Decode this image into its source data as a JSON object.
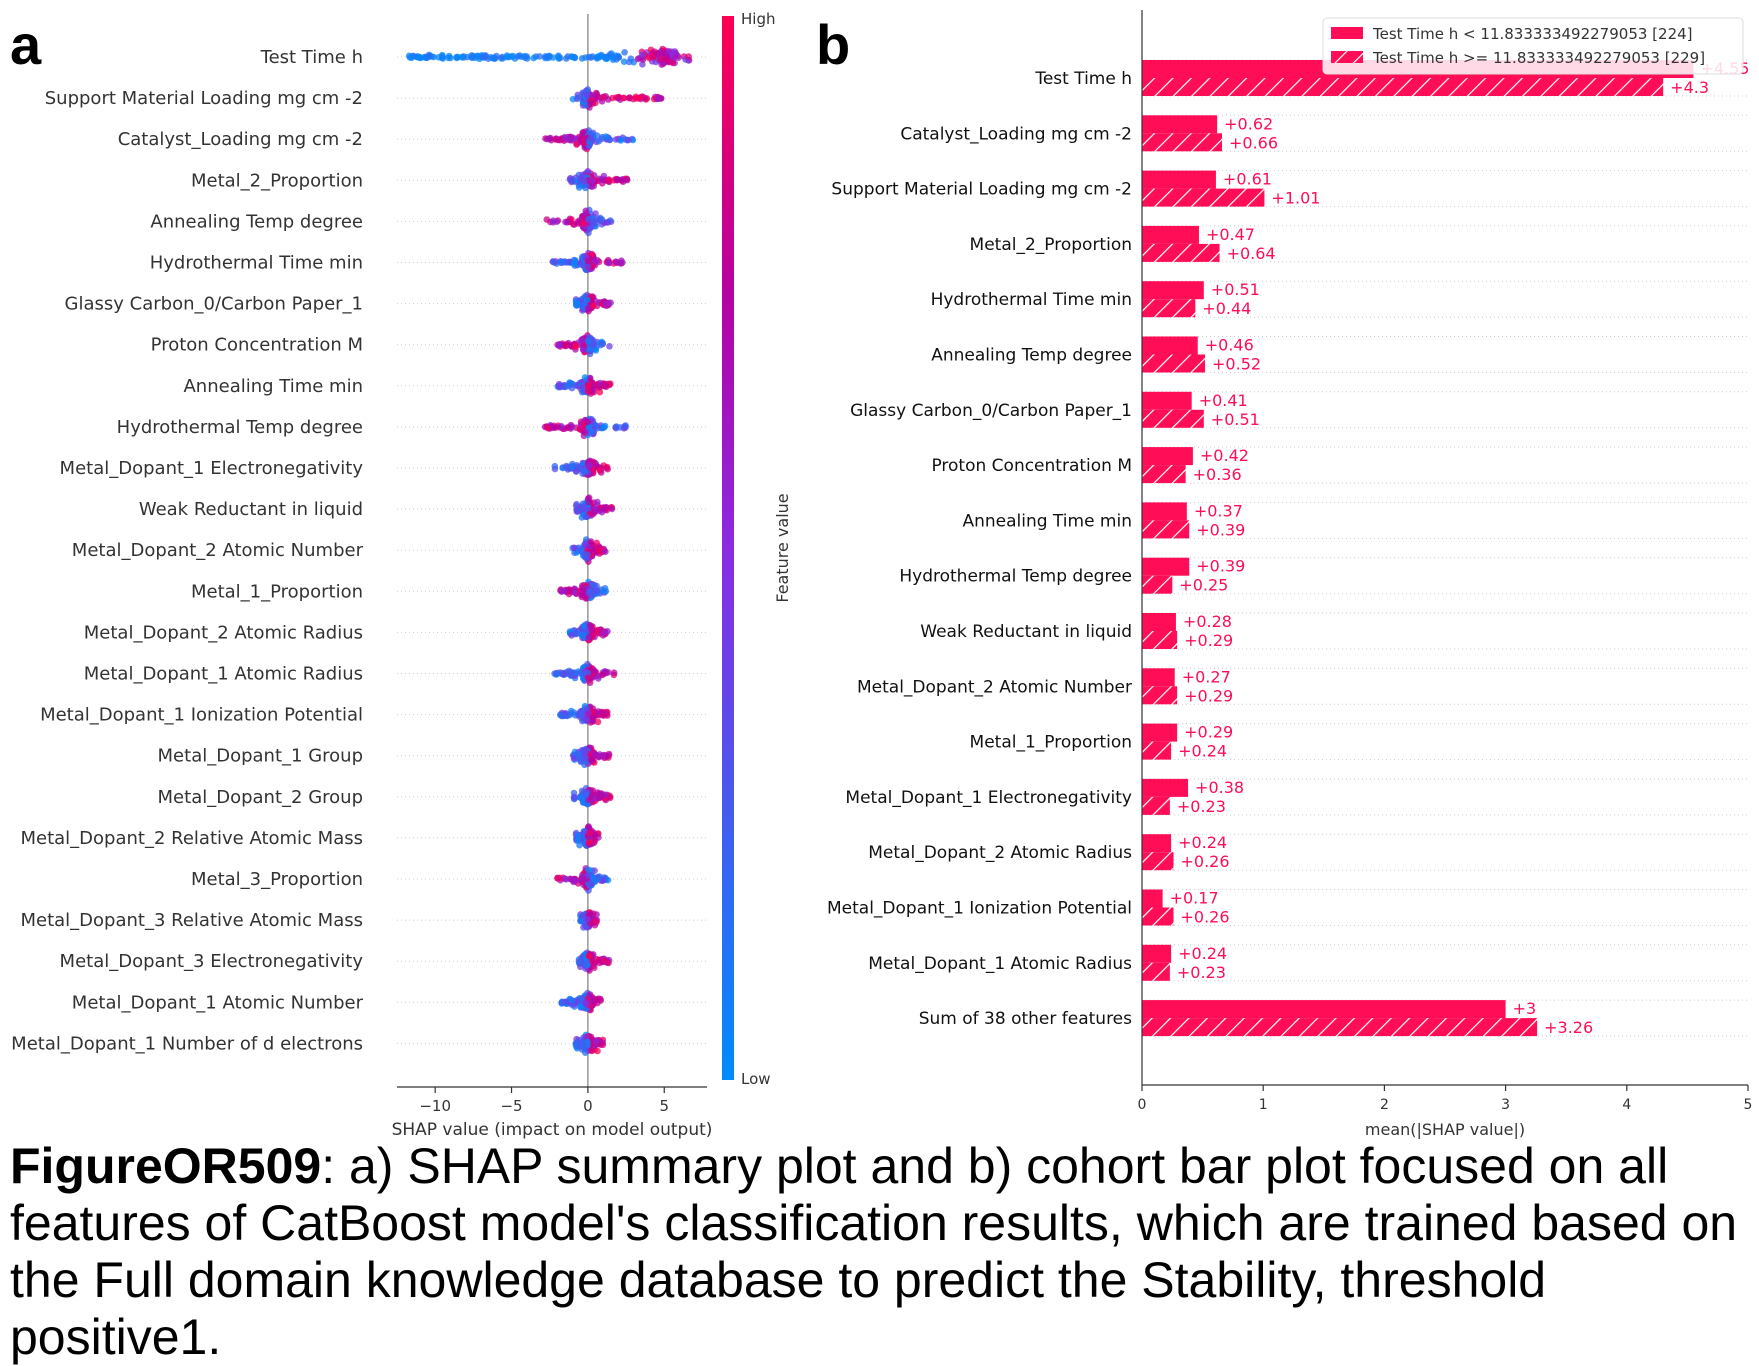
{
  "panel_labels": {
    "a": "a",
    "b": "b"
  },
  "caption": {
    "bold": "FigureOR509",
    "text": ": a) SHAP summary plot and b) cohort bar plot focused on all features of CatBoost model's classification results, which are trained based on the Full domain knowledge database to predict the Stability, threshold positive1."
  },
  "colors": {
    "high": "#ff0052",
    "low": "#008bfb",
    "mid": "#b8009f",
    "bar": "#ff0d57"
  },
  "chart_data": [
    {
      "type": "scatter",
      "subtype": "shap-beeswarm",
      "xlabel": "SHAP value (impact on model output)",
      "xlim": [
        -12.5,
        7.8
      ],
      "xticks": [
        -10,
        -5,
        0,
        5
      ],
      "xtick_labels": [
        "−10",
        "−5",
        "0",
        "5"
      ],
      "colorbar": {
        "label": "Feature value",
        "high": "High",
        "low": "Low"
      },
      "grid": "horizontal dotted",
      "features": [
        {
          "name": "Test Time h",
          "min": -11.8,
          "max": 6.8,
          "pos_high": true,
          "density": "wide"
        },
        {
          "name": "Support Material Loading mg cm -2",
          "min": -1.0,
          "max": 4.8,
          "pos_high": true
        },
        {
          "name": "Catalyst_Loading mg cm -2",
          "min": -2.8,
          "max": 3.2,
          "pos_high": false
        },
        {
          "name": "Metal_2_Proportion",
          "min": -1.2,
          "max": 2.6,
          "pos_high": true
        },
        {
          "name": "Annealing Temp degree",
          "min": -2.8,
          "max": 1.8,
          "pos_high": false
        },
        {
          "name": "Hydrothermal Time min",
          "min": -2.3,
          "max": 2.3,
          "pos_high": true
        },
        {
          "name": "Glassy Carbon_0/Carbon Paper_1",
          "min": -0.8,
          "max": 1.5,
          "pos_high": true
        },
        {
          "name": "Proton Concentration M",
          "min": -2.0,
          "max": 1.5,
          "pos_high": false
        },
        {
          "name": "Annealing Time min",
          "min": -2.0,
          "max": 1.5,
          "pos_high": true
        },
        {
          "name": "Hydrothermal Temp degree",
          "min": -2.8,
          "max": 2.5,
          "pos_high": false
        },
        {
          "name": "Metal_Dopant_1 Electronegativity",
          "min": -2.3,
          "max": 1.5,
          "pos_high": true
        },
        {
          "name": "Weak Reductant in liquid",
          "min": -0.8,
          "max": 1.6,
          "pos_high": true
        },
        {
          "name": "Metal_Dopant_2 Atomic Number",
          "min": -1.0,
          "max": 1.2,
          "pos_high": true
        },
        {
          "name": "Metal_1_Proportion",
          "min": -1.8,
          "max": 1.2,
          "pos_high": false
        },
        {
          "name": "Metal_Dopant_2 Atomic Radius",
          "min": -1.2,
          "max": 1.3,
          "pos_high": true
        },
        {
          "name": "Metal_Dopant_1 Atomic Radius",
          "min": -2.2,
          "max": 1.8,
          "pos_high": true
        },
        {
          "name": "Metal_Dopant_1 Ionization Potential",
          "min": -1.8,
          "max": 1.3,
          "pos_high": true
        },
        {
          "name": "Metal_Dopant_1 Group",
          "min": -1.0,
          "max": 1.4,
          "pos_high": true
        },
        {
          "name": "Metal_Dopant_2 Group",
          "min": -1.0,
          "max": 1.6,
          "pos_high": true
        },
        {
          "name": "Metal_Dopant_2 Relative Atomic Mass",
          "min": -0.8,
          "max": 0.7,
          "pos_high": true
        },
        {
          "name": "Metal_3_Proportion",
          "min": -2.0,
          "max": 1.4,
          "pos_high": false
        },
        {
          "name": "Metal_Dopant_3 Relative Atomic Mass",
          "min": -0.5,
          "max": 0.6,
          "pos_high": true
        },
        {
          "name": "Metal_Dopant_3 Electronegativity",
          "min": -0.6,
          "max": 1.4,
          "pos_high": true
        },
        {
          "name": "Metal_Dopant_1 Atomic Number",
          "min": -1.8,
          "max": 0.9,
          "pos_high": true
        },
        {
          "name": "Metal_Dopant_1 Number of d electrons",
          "min": -0.8,
          "max": 1.0,
          "pos_high": true
        }
      ]
    },
    {
      "type": "bar",
      "subtype": "horizontal-grouped",
      "xlabel": "mean(|SHAP value|)",
      "xlim": [
        0,
        5
      ],
      "xticks": [
        0,
        1,
        2,
        3,
        4,
        5
      ],
      "legend": {
        "position": "top-right"
      },
      "series": [
        {
          "name": "Test Time h < 11.833333492279053 [224]",
          "style": "solid"
        },
        {
          "name": "Test Time h >= 11.833333492279053 [229]",
          "style": "hatched"
        }
      ],
      "categories": [
        {
          "name": "Test Time h",
          "values": [
            4.55,
            4.3
          ],
          "labels": [
            "+4.55",
            "+4.3"
          ]
        },
        {
          "name": "Catalyst_Loading mg cm -2",
          "values": [
            0.62,
            0.66
          ],
          "labels": [
            "+0.62",
            "+0.66"
          ]
        },
        {
          "name": "Support Material Loading mg cm -2",
          "values": [
            0.61,
            1.01
          ],
          "labels": [
            "+0.61",
            "+1.01"
          ]
        },
        {
          "name": "Metal_2_Proportion",
          "values": [
            0.47,
            0.64
          ],
          "labels": [
            "+0.47",
            "+0.64"
          ]
        },
        {
          "name": "Hydrothermal Time min",
          "values": [
            0.51,
            0.44
          ],
          "labels": [
            "+0.51",
            "+0.44"
          ]
        },
        {
          "name": "Annealing Temp degree",
          "values": [
            0.46,
            0.52
          ],
          "labels": [
            "+0.46",
            "+0.52"
          ]
        },
        {
          "name": "Glassy Carbon_0/Carbon Paper_1",
          "values": [
            0.41,
            0.51
          ],
          "labels": [
            "+0.41",
            "+0.51"
          ]
        },
        {
          "name": "Proton Concentration M",
          "values": [
            0.42,
            0.36
          ],
          "labels": [
            "+0.42",
            "+0.36"
          ]
        },
        {
          "name": "Annealing Time min",
          "values": [
            0.37,
            0.39
          ],
          "labels": [
            "+0.37",
            "+0.39"
          ]
        },
        {
          "name": "Hydrothermal Temp degree",
          "values": [
            0.39,
            0.25
          ],
          "labels": [
            "+0.39",
            "+0.25"
          ]
        },
        {
          "name": "Weak Reductant in liquid",
          "values": [
            0.28,
            0.29
          ],
          "labels": [
            "+0.28",
            "+0.29"
          ]
        },
        {
          "name": "Metal_Dopant_2 Atomic Number",
          "values": [
            0.27,
            0.29
          ],
          "labels": [
            "+0.27",
            "+0.29"
          ]
        },
        {
          "name": "Metal_1_Proportion",
          "values": [
            0.29,
            0.24
          ],
          "labels": [
            "+0.29",
            "+0.24"
          ]
        },
        {
          "name": "Metal_Dopant_1 Electronegativity",
          "values": [
            0.38,
            0.23
          ],
          "labels": [
            "+0.38",
            "+0.23"
          ]
        },
        {
          "name": "Metal_Dopant_2 Atomic Radius",
          "values": [
            0.24,
            0.26
          ],
          "labels": [
            "+0.24",
            "+0.26"
          ]
        },
        {
          "name": "Metal_Dopant_1 Ionization Potential",
          "values": [
            0.17,
            0.26
          ],
          "labels": [
            "+0.17",
            "+0.26"
          ]
        },
        {
          "name": "Metal_Dopant_1 Atomic Radius",
          "values": [
            0.24,
            0.23
          ],
          "labels": [
            "+0.24",
            "+0.23"
          ]
        },
        {
          "name": "Sum of 38 other features",
          "values": [
            3.0,
            3.26
          ],
          "labels": [
            "+3",
            "+3.26"
          ]
        }
      ]
    }
  ]
}
